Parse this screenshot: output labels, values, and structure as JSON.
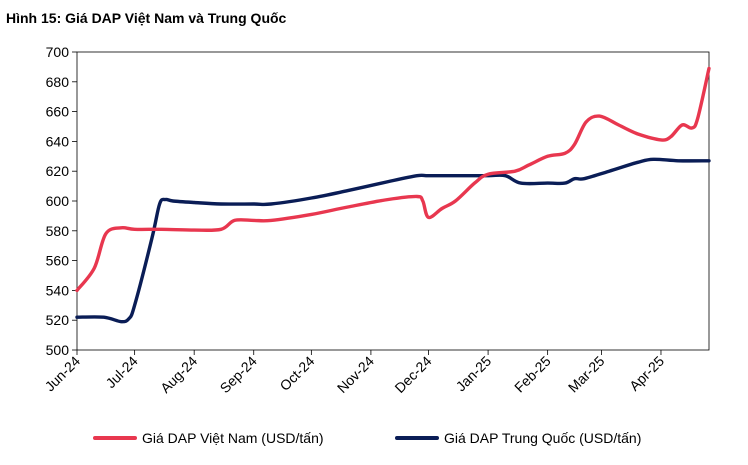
{
  "chart_data": {
    "type": "line",
    "title": "Hình 15: Giá DAP Việt Nam và Trung Quốc",
    "xlabel": "",
    "ylabel": "",
    "ylim": [
      500,
      700
    ],
    "yticks": [
      500,
      520,
      540,
      560,
      580,
      600,
      620,
      640,
      660,
      680,
      700
    ],
    "xticks": [
      "Jun-24",
      "Jul-24",
      "Aug-24",
      "Sep-24",
      "Oct-24",
      "Nov-24",
      "Dec-24",
      "Jan-25",
      "Feb-25",
      "Mar-25",
      "Apr-25"
    ],
    "grid": false,
    "legend_position": "bottom",
    "series": [
      {
        "name": "Giá DAP Việt Nam (USD/tấn)",
        "color": "#e8374f",
        "points": [
          [
            "2024-06-01",
            540
          ],
          [
            "2024-06-10",
            555
          ],
          [
            "2024-06-16",
            578
          ],
          [
            "2024-06-24",
            582
          ],
          [
            "2024-07-01",
            581
          ],
          [
            "2024-07-15",
            581
          ],
          [
            "2024-08-01",
            580.5
          ],
          [
            "2024-08-15",
            581
          ],
          [
            "2024-08-22",
            587
          ],
          [
            "2024-09-01",
            587
          ],
          [
            "2024-09-10",
            587
          ],
          [
            "2024-10-01",
            591
          ],
          [
            "2024-10-20",
            596
          ],
          [
            "2024-11-10",
            601
          ],
          [
            "2024-11-25",
            603
          ],
          [
            "2024-11-28",
            600
          ],
          [
            "2024-12-01",
            589
          ],
          [
            "2024-12-08",
            595
          ],
          [
            "2024-12-15",
            600
          ],
          [
            "2024-12-25",
            612
          ],
          [
            "2025-01-01",
            618
          ],
          [
            "2025-01-15",
            620
          ],
          [
            "2025-01-22",
            624
          ],
          [
            "2025-02-01",
            630
          ],
          [
            "2025-02-10",
            632
          ],
          [
            "2025-02-15",
            638
          ],
          [
            "2025-02-21",
            653
          ],
          [
            "2025-02-28",
            657
          ],
          [
            "2025-03-10",
            651
          ],
          [
            "2025-03-20",
            645
          ],
          [
            "2025-04-01",
            641
          ],
          [
            "2025-04-06",
            643
          ],
          [
            "2025-04-12",
            651
          ],
          [
            "2025-04-17",
            649
          ],
          [
            "2025-04-20",
            655
          ],
          [
            "2025-04-26",
            689
          ]
        ]
      },
      {
        "name": "Giá DAP Trung Quốc (USD/tấn)",
        "color": "#0a1d56",
        "points": [
          [
            "2024-06-01",
            522
          ],
          [
            "2024-06-15",
            522
          ],
          [
            "2024-06-24",
            519
          ],
          [
            "2024-06-28",
            521
          ],
          [
            "2024-07-01",
            530
          ],
          [
            "2024-07-10",
            575
          ],
          [
            "2024-07-14",
            598
          ],
          [
            "2024-07-17",
            601
          ],
          [
            "2024-07-21",
            600
          ],
          [
            "2024-08-01",
            599
          ],
          [
            "2024-08-15",
            598
          ],
          [
            "2024-09-01",
            598
          ],
          [
            "2024-09-10",
            598
          ],
          [
            "2024-10-01",
            602
          ],
          [
            "2024-10-20",
            607
          ],
          [
            "2024-11-10",
            613
          ],
          [
            "2024-11-25",
            617
          ],
          [
            "2024-12-01",
            617
          ],
          [
            "2024-12-15",
            617
          ],
          [
            "2025-01-01",
            617
          ],
          [
            "2025-01-10",
            617
          ],
          [
            "2025-01-18",
            612
          ],
          [
            "2025-02-01",
            612
          ],
          [
            "2025-02-10",
            612
          ],
          [
            "2025-02-15",
            615
          ],
          [
            "2025-02-20",
            615
          ],
          [
            "2025-03-05",
            620
          ],
          [
            "2025-03-20",
            626
          ],
          [
            "2025-03-28",
            628
          ],
          [
            "2025-04-10",
            627
          ],
          [
            "2025-04-26",
            627
          ]
        ]
      }
    ]
  }
}
